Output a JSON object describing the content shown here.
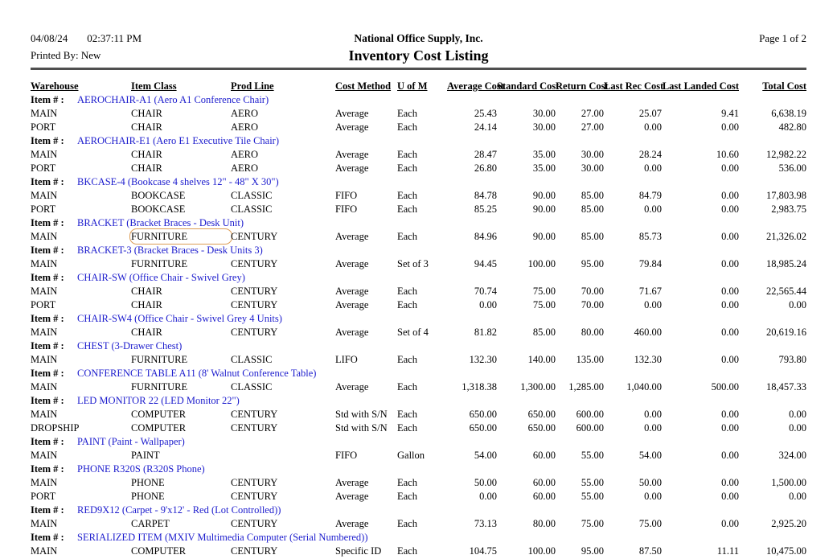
{
  "header": {
    "date": "04/08/24",
    "time": "02:37:11 PM",
    "printed_by": "Printed By: New",
    "company": "National Office Supply, Inc.",
    "title": "Inventory Cost Listing",
    "page": "Page 1 of 2"
  },
  "annotation": {
    "highlight_color": "#dd9d55",
    "note": "orange rounded outline around FURNITURE cell of BRACKET MAIN row"
  },
  "table": {
    "item_label": "Item # :",
    "columns": [
      "Warehouse",
      "Item Class",
      "Prod Line",
      "Cost Method",
      "U of M",
      "Average Cost",
      "Standard Cost",
      "Return Cost",
      "Last Rec Cost",
      "Last Landed Cost",
      "Total Cost"
    ],
    "items": [
      {
        "item": "AEROCHAIR-A1 (Aero A1 Conference Chair)",
        "rows": [
          {
            "warehouse": "MAIN",
            "item_class": "CHAIR",
            "prod_line": "AERO",
            "cost_method": "Average",
            "uom": "Each",
            "average_cost": "25.43",
            "standard_cost": "30.00",
            "return_cost": "27.00",
            "last_rec_cost": "25.07",
            "last_landed_cost": "9.41",
            "total_cost": "6,638.19"
          },
          {
            "warehouse": "PORT",
            "item_class": "CHAIR",
            "prod_line": "AERO",
            "cost_method": "Average",
            "uom": "Each",
            "average_cost": "24.14",
            "standard_cost": "30.00",
            "return_cost": "27.00",
            "last_rec_cost": "0.00",
            "last_landed_cost": "0.00",
            "total_cost": "482.80"
          }
        ]
      },
      {
        "item": "AEROCHAIR-E1 (Aero E1 Executive Tile Chair)",
        "rows": [
          {
            "warehouse": "MAIN",
            "item_class": "CHAIR",
            "prod_line": "AERO",
            "cost_method": "Average",
            "uom": "Each",
            "average_cost": "28.47",
            "standard_cost": "35.00",
            "return_cost": "30.00",
            "last_rec_cost": "28.24",
            "last_landed_cost": "10.60",
            "total_cost": "12,982.22"
          },
          {
            "warehouse": "PORT",
            "item_class": "CHAIR",
            "prod_line": "AERO",
            "cost_method": "Average",
            "uom": "Each",
            "average_cost": "26.80",
            "standard_cost": "35.00",
            "return_cost": "30.00",
            "last_rec_cost": "0.00",
            "last_landed_cost": "0.00",
            "total_cost": "536.00"
          }
        ]
      },
      {
        "item": "BKCASE-4 (Bookcase 4 shelves 12\" - 48\" X 30\")",
        "rows": [
          {
            "warehouse": "MAIN",
            "item_class": "BOOKCASE",
            "prod_line": "CLASSIC",
            "cost_method": "FIFO",
            "uom": "Each",
            "average_cost": "84.78",
            "standard_cost": "90.00",
            "return_cost": "85.00",
            "last_rec_cost": "84.79",
            "last_landed_cost": "0.00",
            "total_cost": "17,803.98"
          },
          {
            "warehouse": "PORT",
            "item_class": "BOOKCASE",
            "prod_line": "CLASSIC",
            "cost_method": "FIFO",
            "uom": "Each",
            "average_cost": "85.25",
            "standard_cost": "90.00",
            "return_cost": "85.00",
            "last_rec_cost": "0.00",
            "last_landed_cost": "0.00",
            "total_cost": "2,983.75"
          }
        ]
      },
      {
        "item": "BRACKET (Bracket Braces - Desk Unit)",
        "rows": [
          {
            "warehouse": "MAIN",
            "item_class": "FURNITURE",
            "prod_line": "CENTURY",
            "cost_method": "Average",
            "uom": "Each",
            "average_cost": "84.96",
            "standard_cost": "90.00",
            "return_cost": "85.00",
            "last_rec_cost": "85.73",
            "last_landed_cost": "0.00",
            "total_cost": "21,326.02",
            "highlight": "item_class"
          }
        ]
      },
      {
        "item": "BRACKET-3 (Bracket Braces - Desk Units 3)",
        "rows": [
          {
            "warehouse": "MAIN",
            "item_class": "FURNITURE",
            "prod_line": "CENTURY",
            "cost_method": "Average",
            "uom": "Set of 3",
            "average_cost": "94.45",
            "standard_cost": "100.00",
            "return_cost": "95.00",
            "last_rec_cost": "79.84",
            "last_landed_cost": "0.00",
            "total_cost": "18,985.24"
          }
        ]
      },
      {
        "item": "CHAIR-SW (Office Chair - Swivel Grey)",
        "rows": [
          {
            "warehouse": "MAIN",
            "item_class": "CHAIR",
            "prod_line": "CENTURY",
            "cost_method": "Average",
            "uom": "Each",
            "average_cost": "70.74",
            "standard_cost": "75.00",
            "return_cost": "70.00",
            "last_rec_cost": "71.67",
            "last_landed_cost": "0.00",
            "total_cost": "22,565.44"
          },
          {
            "warehouse": "PORT",
            "item_class": "CHAIR",
            "prod_line": "CENTURY",
            "cost_method": "Average",
            "uom": "Each",
            "average_cost": "0.00",
            "standard_cost": "75.00",
            "return_cost": "70.00",
            "last_rec_cost": "0.00",
            "last_landed_cost": "0.00",
            "total_cost": "0.00"
          }
        ]
      },
      {
        "item": "CHAIR-SW4 (Office Chair - Swivel Grey 4 Units)",
        "rows": [
          {
            "warehouse": "MAIN",
            "item_class": "CHAIR",
            "prod_line": "CENTURY",
            "cost_method": "Average",
            "uom": "Set of 4",
            "average_cost": "81.82",
            "standard_cost": "85.00",
            "return_cost": "80.00",
            "last_rec_cost": "460.00",
            "last_landed_cost": "0.00",
            "total_cost": "20,619.16"
          }
        ]
      },
      {
        "item": "CHEST (3-Drawer Chest)",
        "rows": [
          {
            "warehouse": "MAIN",
            "item_class": "FURNITURE",
            "prod_line": "CLASSIC",
            "cost_method": "LIFO",
            "uom": "Each",
            "average_cost": "132.30",
            "standard_cost": "140.00",
            "return_cost": "135.00",
            "last_rec_cost": "132.30",
            "last_landed_cost": "0.00",
            "total_cost": "793.80"
          }
        ]
      },
      {
        "item": "CONFERENCE TABLE A11 (8' Walnut Conference Table)",
        "rows": [
          {
            "warehouse": "MAIN",
            "item_class": "FURNITURE",
            "prod_line": "CLASSIC",
            "cost_method": "Average",
            "uom": "Each",
            "average_cost": "1,318.38",
            "standard_cost": "1,300.00",
            "return_cost": "1,285.00",
            "last_rec_cost": "1,040.00",
            "last_landed_cost": "500.00",
            "total_cost": "18,457.33"
          }
        ]
      },
      {
        "item": "LED MONITOR 22 (LED Monitor 22\")",
        "rows": [
          {
            "warehouse": "MAIN",
            "item_class": "COMPUTER",
            "prod_line": "CENTURY",
            "cost_method": "Std with S/N",
            "uom": "Each",
            "average_cost": "650.00",
            "standard_cost": "650.00",
            "return_cost": "600.00",
            "last_rec_cost": "0.00",
            "last_landed_cost": "0.00",
            "total_cost": "0.00"
          },
          {
            "warehouse": "DROPSHIP",
            "item_class": "COMPUTER",
            "prod_line": "CENTURY",
            "cost_method": "Std with S/N",
            "uom": "Each",
            "average_cost": "650.00",
            "standard_cost": "650.00",
            "return_cost": "600.00",
            "last_rec_cost": "0.00",
            "last_landed_cost": "0.00",
            "total_cost": "0.00"
          }
        ]
      },
      {
        "item": "PAINT (Paint - Wallpaper)",
        "rows": [
          {
            "warehouse": "MAIN",
            "item_class": "PAINT",
            "prod_line": "",
            "cost_method": "FIFO",
            "uom": "Gallon",
            "average_cost": "54.00",
            "standard_cost": "60.00",
            "return_cost": "55.00",
            "last_rec_cost": "54.00",
            "last_landed_cost": "0.00",
            "total_cost": "324.00"
          }
        ]
      },
      {
        "item": "PHONE R320S (R320S Phone)",
        "rows": [
          {
            "warehouse": "MAIN",
            "item_class": "PHONE",
            "prod_line": "CENTURY",
            "cost_method": "Average",
            "uom": "Each",
            "average_cost": "50.00",
            "standard_cost": "60.00",
            "return_cost": "55.00",
            "last_rec_cost": "50.00",
            "last_landed_cost": "0.00",
            "total_cost": "1,500.00"
          },
          {
            "warehouse": "PORT",
            "item_class": "PHONE",
            "prod_line": "CENTURY",
            "cost_method": "Average",
            "uom": "Each",
            "average_cost": "0.00",
            "standard_cost": "60.00",
            "return_cost": "55.00",
            "last_rec_cost": "0.00",
            "last_landed_cost": "0.00",
            "total_cost": "0.00"
          }
        ]
      },
      {
        "item": "RED9X12 (Carpet - 9'x12' - Red (Lot Controlled))",
        "rows": [
          {
            "warehouse": "MAIN",
            "item_class": "CARPET",
            "prod_line": "CENTURY",
            "cost_method": "Average",
            "uom": "Each",
            "average_cost": "73.13",
            "standard_cost": "80.00",
            "return_cost": "75.00",
            "last_rec_cost": "75.00",
            "last_landed_cost": "0.00",
            "total_cost": "2,925.20"
          }
        ]
      },
      {
        "item": "SERIALIZED ITEM (MXIV Multimedia Computer (Serial Numbered))",
        "rows": [
          {
            "warehouse": "MAIN",
            "item_class": "COMPUTER",
            "prod_line": "CENTURY",
            "cost_method": "Specific ID",
            "uom": "Each",
            "average_cost": "104.75",
            "standard_cost": "100.00",
            "return_cost": "95.00",
            "last_rec_cost": "87.50",
            "last_landed_cost": "11.11",
            "total_cost": "10,475.00"
          }
        ]
      }
    ]
  }
}
